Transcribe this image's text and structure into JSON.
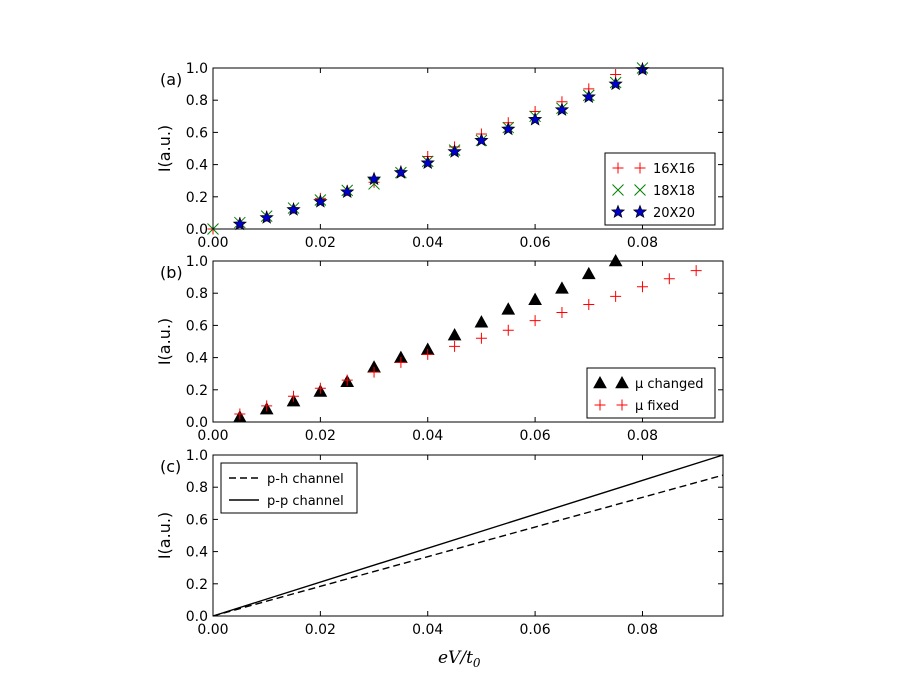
{
  "chart_data": [
    {
      "type": "scatter",
      "panel_label": "(a)",
      "ylabel": "I(a.u.)",
      "xlabel": "",
      "xlim": [
        0,
        0.095
      ],
      "ylim": [
        0,
        1.0
      ],
      "xticks": [
        "0.00",
        "0.02",
        "0.04",
        "0.06",
        "0.08"
      ],
      "yticks": [
        "0.0",
        "0.2",
        "0.4",
        "0.6",
        "0.8",
        "1.0"
      ],
      "legend_position": "lower-right",
      "series": [
        {
          "name": "16X16",
          "marker": "plus",
          "color": "#ff0000",
          "x": [
            0,
            0.005,
            0.01,
            0.015,
            0.02,
            0.025,
            0.03,
            0.035,
            0.04,
            0.045,
            0.05,
            0.055,
            0.06,
            0.065,
            0.07,
            0.075,
            0.08
          ],
          "y": [
            0.0,
            0.04,
            0.08,
            0.13,
            0.19,
            0.24,
            0.29,
            0.36,
            0.45,
            0.51,
            0.59,
            0.66,
            0.73,
            0.79,
            0.87,
            0.96,
            1.0
          ]
        },
        {
          "name": "18X18",
          "marker": "x",
          "color": "#008000",
          "x": [
            0,
            0.005,
            0.01,
            0.015,
            0.02,
            0.025,
            0.03,
            0.035,
            0.04,
            0.045,
            0.05,
            0.055,
            0.06,
            0.065,
            0.07,
            0.075,
            0.08
          ],
          "y": [
            0.0,
            0.04,
            0.08,
            0.13,
            0.18,
            0.24,
            0.28,
            0.35,
            0.42,
            0.49,
            0.55,
            0.63,
            0.7,
            0.75,
            0.83,
            0.91,
            1.0
          ]
        },
        {
          "name": "20X20",
          "marker": "star",
          "color": "#0000cc",
          "x": [
            0.005,
            0.01,
            0.015,
            0.02,
            0.025,
            0.03,
            0.035,
            0.04,
            0.045,
            0.05,
            0.055,
            0.06,
            0.065,
            0.07,
            0.075,
            0.08
          ],
          "y": [
            0.03,
            0.07,
            0.12,
            0.17,
            0.23,
            0.31,
            0.35,
            0.41,
            0.48,
            0.55,
            0.62,
            0.68,
            0.74,
            0.82,
            0.9,
            0.99
          ]
        }
      ]
    },
    {
      "type": "scatter",
      "panel_label": "(b)",
      "ylabel": "I(a.u.)",
      "xlabel": "",
      "xlim": [
        0,
        0.095
      ],
      "ylim": [
        0,
        1.0
      ],
      "xticks": [
        "0.00",
        "0.02",
        "0.04",
        "0.06",
        "0.08"
      ],
      "yticks": [
        "0.0",
        "0.2",
        "0.4",
        "0.6",
        "0.8",
        "1.0"
      ],
      "legend_position": "lower-right",
      "series": [
        {
          "name": "μ changed",
          "marker": "triangle",
          "color": "#000000",
          "x": [
            0.005,
            0.01,
            0.015,
            0.02,
            0.025,
            0.03,
            0.035,
            0.04,
            0.045,
            0.05,
            0.055,
            0.06,
            0.065,
            0.07,
            0.075
          ],
          "y": [
            0.03,
            0.08,
            0.13,
            0.19,
            0.25,
            0.34,
            0.4,
            0.45,
            0.54,
            0.62,
            0.7,
            0.76,
            0.83,
            0.92,
            1.0
          ]
        },
        {
          "name": "μ fixed",
          "marker": "plus",
          "color": "#ff0000",
          "x": [
            0.005,
            0.01,
            0.015,
            0.02,
            0.025,
            0.03,
            0.035,
            0.04,
            0.045,
            0.05,
            0.055,
            0.06,
            0.065,
            0.07,
            0.075,
            0.08,
            0.085,
            0.09
          ],
          "y": [
            0.05,
            0.1,
            0.16,
            0.21,
            0.26,
            0.31,
            0.37,
            0.42,
            0.47,
            0.52,
            0.57,
            0.63,
            0.68,
            0.73,
            0.78,
            0.84,
            0.89,
            0.94
          ]
        }
      ]
    },
    {
      "type": "line",
      "panel_label": "(c)",
      "ylabel": "I(a.u.)",
      "xlabel": "eV/t0",
      "xlim": [
        0,
        0.095
      ],
      "ylim": [
        0,
        1.0
      ],
      "xticks": [
        "0.00",
        "0.02",
        "0.04",
        "0.06",
        "0.08"
      ],
      "yticks": [
        "0.0",
        "0.2",
        "0.4",
        "0.6",
        "0.8",
        "1.0"
      ],
      "legend_position": "upper-left",
      "series": [
        {
          "name": "p-h channel",
          "style": "dashed",
          "color": "#000000",
          "x": [
            0,
            0.095
          ],
          "y": [
            0,
            0.875
          ]
        },
        {
          "name": "p-p channel",
          "style": "solid",
          "color": "#000000",
          "x": [
            0,
            0.095
          ],
          "y": [
            0,
            1.0
          ]
        }
      ]
    }
  ]
}
